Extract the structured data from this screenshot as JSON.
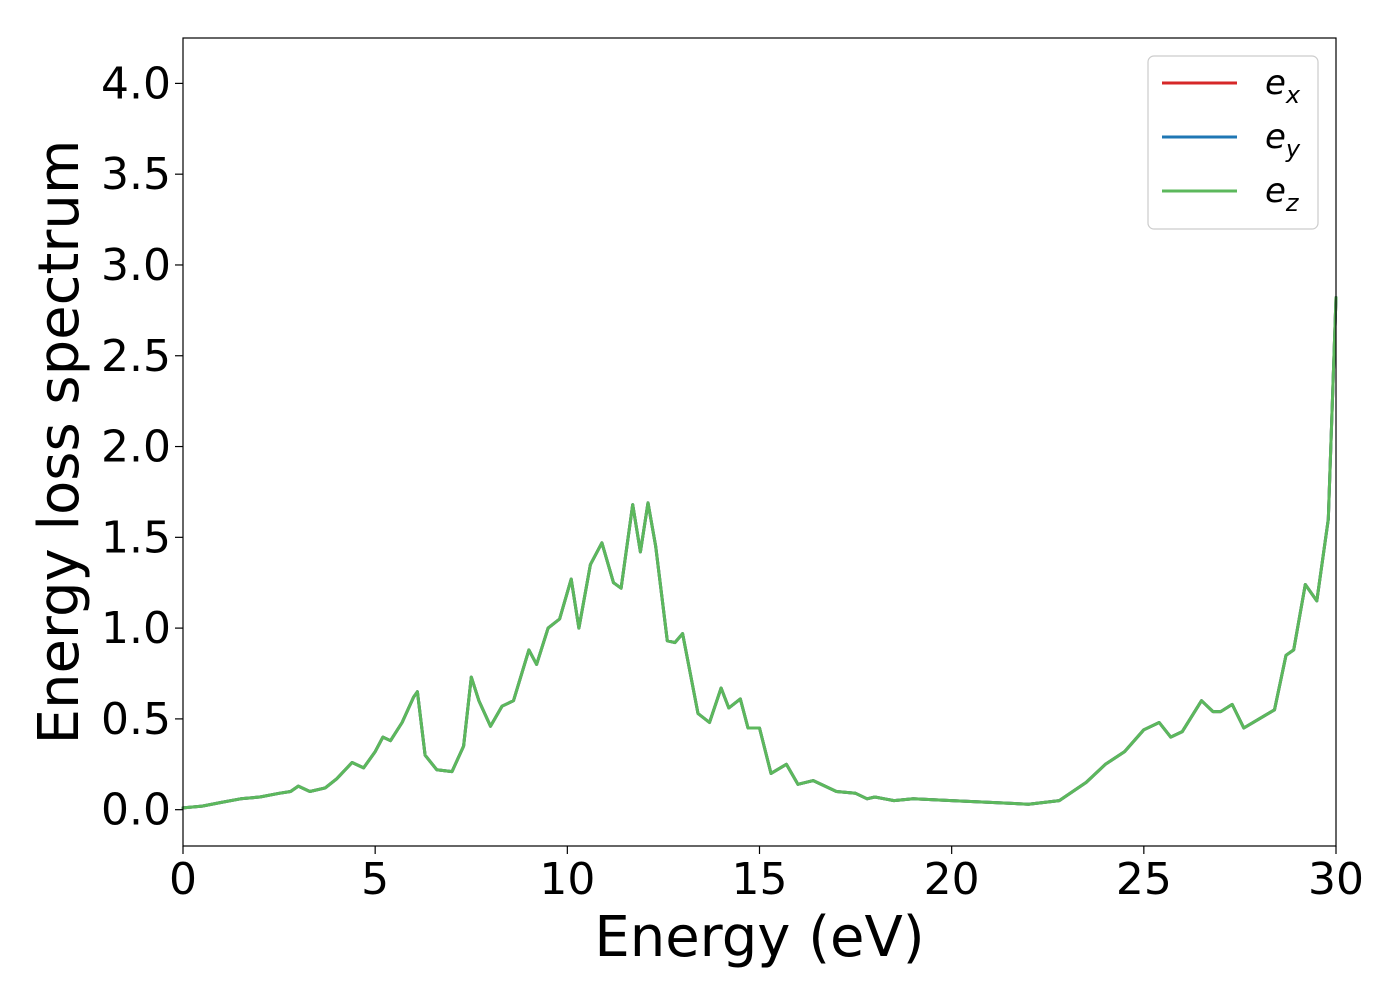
{
  "chart_data": {
    "type": "line",
    "xlabel": "Energy (eV)",
    "ylabel": "Energy loss spectrum",
    "xlim": [
      0,
      30
    ],
    "ylim": [
      -0.2,
      4.25
    ],
    "xticks": [
      0,
      5,
      10,
      15,
      20,
      25,
      30
    ],
    "xtick_labels": [
      "0",
      "5",
      "10",
      "15",
      "20",
      "25",
      "30"
    ],
    "yticks": [
      0.0,
      0.5,
      1.0,
      1.5,
      2.0,
      2.5,
      3.0,
      3.5,
      4.0
    ],
    "ytick_labels": [
      "0.0",
      "0.5",
      "1.0",
      "1.5",
      "2.0",
      "2.5",
      "3.0",
      "3.5",
      "4.0"
    ],
    "grid": false,
    "legend_position": "top-right",
    "x": [
      0,
      0.5,
      1,
      1.5,
      2,
      2.5,
      2.8,
      3,
      3.3,
      3.7,
      4,
      4.4,
      4.7,
      5,
      5.2,
      5.4,
      5.7,
      6,
      6.1,
      6.3,
      6.6,
      7,
      7.3,
      7.5,
      7.7,
      8,
      8.3,
      8.6,
      9,
      9.2,
      9.5,
      9.8,
      10.1,
      10.3,
      10.6,
      10.9,
      11.2,
      11.4,
      11.7,
      11.9,
      12.1,
      12.3,
      12.6,
      12.8,
      13,
      13.2,
      13.4,
      13.7,
      14,
      14.2,
      14.5,
      14.7,
      15,
      15.3,
      15.7,
      16,
      16.4,
      17,
      17.5,
      17.8,
      18,
      18.5,
      19,
      20,
      21,
      22,
      22.8,
      23.5,
      24,
      24.5,
      25,
      25.4,
      25.7,
      26,
      26.5,
      26.8,
      27,
      27.3,
      27.6,
      28,
      28.4,
      28.7,
      28.9,
      29.2,
      29.5,
      29.8,
      30
    ],
    "series": [
      {
        "name": "e_x",
        "name_text": "e",
        "name_sub": "x",
        "color": "#d62728",
        "values": [
          0.01,
          0.02,
          0.04,
          0.06,
          0.07,
          0.09,
          0.1,
          0.13,
          0.1,
          0.12,
          0.17,
          0.26,
          0.23,
          0.32,
          0.4,
          0.38,
          0.48,
          0.62,
          0.65,
          0.3,
          0.22,
          0.21,
          0.35,
          0.73,
          0.6,
          0.46,
          0.57,
          0.6,
          0.88,
          0.8,
          1.0,
          1.05,
          1.27,
          1.0,
          1.35,
          1.47,
          1.25,
          1.22,
          1.68,
          1.42,
          1.69,
          1.45,
          0.93,
          0.92,
          0.97,
          0.75,
          0.53,
          0.48,
          0.67,
          0.56,
          0.61,
          0.45,
          0.45,
          0.2,
          0.25,
          0.14,
          0.16,
          0.1,
          0.09,
          0.06,
          0.07,
          0.05,
          0.06,
          0.05,
          0.04,
          0.03,
          0.05,
          0.15,
          0.25,
          0.32,
          0.44,
          0.48,
          0.4,
          0.43,
          0.6,
          0.54,
          0.54,
          0.58,
          0.45,
          0.5,
          0.55,
          0.85,
          0.88,
          1.24,
          1.15,
          1.6,
          2.82
        ]
      },
      {
        "name": "e_y",
        "name_text": "e",
        "name_sub": "y",
        "color": "#1f77b4",
        "values": [
          0.01,
          0.02,
          0.04,
          0.06,
          0.07,
          0.09,
          0.1,
          0.13,
          0.1,
          0.12,
          0.17,
          0.26,
          0.23,
          0.32,
          0.4,
          0.38,
          0.48,
          0.62,
          0.65,
          0.3,
          0.22,
          0.21,
          0.35,
          0.73,
          0.6,
          0.46,
          0.57,
          0.6,
          0.88,
          0.8,
          1.0,
          1.05,
          1.27,
          1.0,
          1.35,
          1.47,
          1.25,
          1.22,
          1.68,
          1.42,
          1.69,
          1.45,
          0.93,
          0.92,
          0.97,
          0.75,
          0.53,
          0.48,
          0.67,
          0.56,
          0.61,
          0.45,
          0.45,
          0.2,
          0.25,
          0.14,
          0.16,
          0.1,
          0.09,
          0.06,
          0.07,
          0.05,
          0.06,
          0.05,
          0.04,
          0.03,
          0.05,
          0.15,
          0.25,
          0.32,
          0.44,
          0.48,
          0.4,
          0.43,
          0.6,
          0.54,
          0.54,
          0.58,
          0.45,
          0.5,
          0.55,
          0.85,
          0.88,
          1.24,
          1.15,
          1.6,
          2.82
        ]
      },
      {
        "name": "e_z",
        "name_text": "e",
        "name_sub": "z",
        "color": "#5cb85c",
        "values": [
          0.01,
          0.02,
          0.04,
          0.06,
          0.07,
          0.09,
          0.1,
          0.13,
          0.1,
          0.12,
          0.17,
          0.26,
          0.23,
          0.32,
          0.4,
          0.38,
          0.48,
          0.62,
          0.65,
          0.3,
          0.22,
          0.21,
          0.35,
          0.73,
          0.6,
          0.46,
          0.57,
          0.6,
          0.88,
          0.8,
          1.0,
          1.05,
          1.27,
          1.0,
          1.35,
          1.47,
          1.25,
          1.22,
          1.68,
          1.42,
          1.69,
          1.45,
          0.93,
          0.92,
          0.97,
          0.75,
          0.53,
          0.48,
          0.67,
          0.56,
          0.61,
          0.45,
          0.45,
          0.2,
          0.25,
          0.14,
          0.16,
          0.1,
          0.09,
          0.06,
          0.07,
          0.05,
          0.06,
          0.05,
          0.04,
          0.03,
          0.05,
          0.15,
          0.25,
          0.32,
          0.44,
          0.48,
          0.4,
          0.43,
          0.6,
          0.54,
          0.54,
          0.58,
          0.45,
          0.5,
          0.55,
          0.85,
          0.88,
          1.24,
          1.15,
          1.6,
          2.82
        ]
      }
    ]
  }
}
